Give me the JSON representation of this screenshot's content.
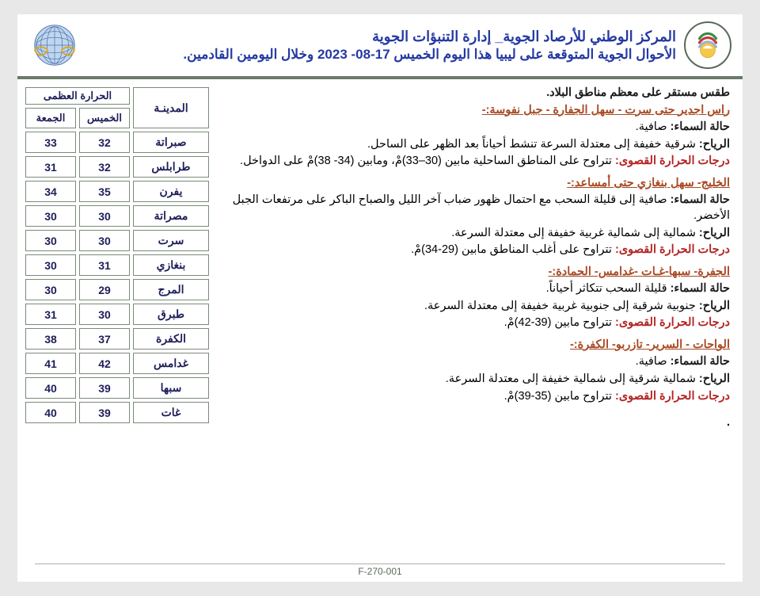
{
  "header": {
    "title1": "المركز الوطني للأرصاد الجوية_ إدارة التنبؤات الجوية",
    "title2": "الأحوال الجوية المتوقعة على ليبيا هذا اليوم الخميس 17-08- 2023 وخلال اليومين القادمين.",
    "title_color": "#2439a3",
    "border_color": "#6b7a6b"
  },
  "headline": "طقس مستقر على معظم مناطق البلاد.",
  "regions": [
    {
      "title": "راس اجدير حتى سرت - سهل الجفارة - جبل نفوسة:-",
      "sky": "صافية.",
      "wind": "شرقية خفيفة إلى معتدلة السرعة تنشط أحياناً بعد الظهر على الساحل.",
      "temp": "تتراوح على المناطق الساحلية مابين (30–33)مْ، ومابين (34- 38)مْ على الدواخل."
    },
    {
      "title": "الخليج- سهل بنغازي حتى أمساعد:-",
      "sky": "صافية إلى قليلة السحب مع احتمال ظهور ضباب آخر الليل والصباح الباكر على مرتفعات الجبل الأخضر.",
      "wind": "شمالية إلى شمالية غربية خفيفة إلى معتدلة السرعة.",
      "temp": "تتراوح على أغلب المناطق مابين (29-34)مْ."
    },
    {
      "title": "الجفرة- سبها-غـات -غدامس- الحمادة:-",
      "sky": "قليلة السحب تتكاثر أحياناً.",
      "wind": "جنوبية شرقية إلى جنوبية غربية خفيفة إلى معتدلة السرعة.",
      "temp": "تتراوح مابين (39-42)مْ."
    },
    {
      "title": "الواحات - السرير- تازربو- الكفرة:-",
      "sky": "صافية.",
      "wind": "شمالية شرقية إلى شمالية خفيفة إلى معتدلة السرعة.",
      "temp": "تتراوح مابين (35-39)مْ."
    }
  ],
  "labels": {
    "sky": "حالة السماء:",
    "wind": "الرياح:",
    "temp": "درجات الحرارة القصوى:"
  },
  "table": {
    "head_city": "المدينـة",
    "head_max": "الحرارة العظمى",
    "head_thu": "الخميس",
    "head_fri": "الجمعة",
    "rows": [
      {
        "city": "صبراتة",
        "thu": "32",
        "fri": "33"
      },
      {
        "city": "طرابلس",
        "thu": "32",
        "fri": "31"
      },
      {
        "city": "يفرن",
        "thu": "35",
        "fri": "34"
      },
      {
        "city": "مصراتة",
        "thu": "30",
        "fri": "30"
      },
      {
        "city": "سرت",
        "thu": "30",
        "fri": "30"
      },
      {
        "city": "بنغازي",
        "thu": "31",
        "fri": "30"
      },
      {
        "city": "المرج",
        "thu": "29",
        "fri": "30"
      },
      {
        "city": "طبرق",
        "thu": "30",
        "fri": "31"
      },
      {
        "city": "الكفرة",
        "thu": "37",
        "fri": "38"
      },
      {
        "city": "غدامس",
        "thu": "42",
        "fri": "41"
      },
      {
        "city": "سبها",
        "thu": "39",
        "fri": "40"
      },
      {
        "city": "غات",
        "thu": "39",
        "fri": "40"
      }
    ],
    "border_color": "#7a8a7a",
    "text_color": "#1e1e5a"
  },
  "colors": {
    "region_title": "#a84a24",
    "temp_label": "#b42424",
    "text": "#1a1a1a",
    "background": "#ffffff",
    "page_bg": "#e8e8e8"
  },
  "footer": "F-270-001"
}
